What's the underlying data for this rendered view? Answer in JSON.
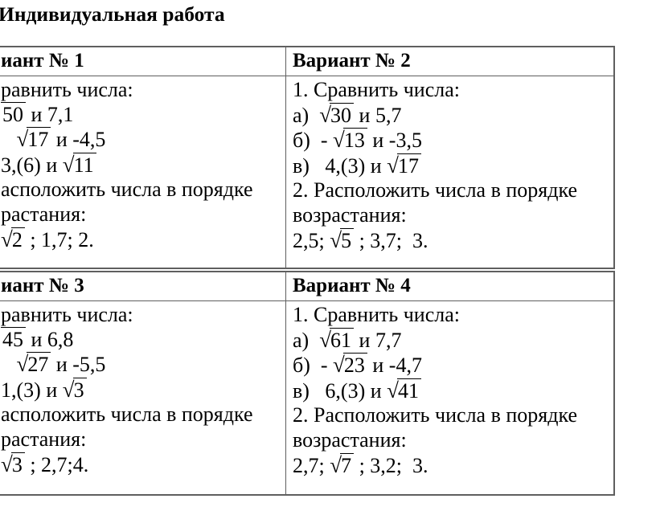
{
  "title": "Индивидуальная работа",
  "colors": {
    "text": "#000000",
    "table_border": "#5f5f5f",
    "background": "#ffffff"
  },
  "tables": [
    {
      "columns": [
        {
          "header": "иант № 1",
          "lines": [
            [
              {
                "t": "равнить числа:"
              }
            ],
            [
              {
                "b": "50"
              },
              {
                "t": " и 7,1"
              }
            ],
            [
              {
                "t": "   "
              },
              {
                "r": "17"
              },
              {
                "t": " и -4,5"
              }
            ],
            [
              {
                "t": "3,(6) и "
              },
              {
                "r": "11"
              }
            ],
            [
              {
                "t": "асположить числа в порядке"
              }
            ],
            [
              {
                "t": "растания:"
              }
            ],
            [
              {
                "r": "2"
              },
              {
                "t": " ; 1,7; 2."
              }
            ]
          ]
        },
        {
          "header": "Вариант № 2",
          "lines": [
            [
              {
                "t": "1. Сравнить числа:"
              }
            ],
            [
              {
                "t": "а)  "
              },
              {
                "r": "30"
              },
              {
                "t": " и 5,7"
              }
            ],
            [
              {
                "t": "б)  - "
              },
              {
                "r": "13"
              },
              {
                "t": " и -3,5"
              }
            ],
            [
              {
                "t": "в)   4,(3) и "
              },
              {
                "r": "17"
              }
            ],
            [
              {
                "t": "2. Расположить числа в порядке"
              }
            ],
            [
              {
                "t": "возрастания:"
              }
            ],
            [
              {
                "t": "2,5; "
              },
              {
                "r": "5"
              },
              {
                "t": " ; 3,7;  3."
              }
            ]
          ]
        }
      ]
    },
    {
      "columns": [
        {
          "header": "иант № 3",
          "lines": [
            [
              {
                "t": "равнить числа:"
              }
            ],
            [
              {
                "b": "45"
              },
              {
                "t": " и 6,8"
              }
            ],
            [
              {
                "t": "   "
              },
              {
                "r": "27"
              },
              {
                "t": " и -5,5"
              }
            ],
            [
              {
                "t": "1,(3) и "
              },
              {
                "r": "3"
              }
            ],
            [
              {
                "t": "асположить числа в порядке"
              }
            ],
            [
              {
                "t": "растания:"
              }
            ],
            [
              {
                "r": "3"
              },
              {
                "t": " ; 2,7;4."
              }
            ]
          ]
        },
        {
          "header": "Вариант № 4",
          "lines": [
            [
              {
                "t": "1. Сравнить числа:"
              }
            ],
            [
              {
                "t": "а)  "
              },
              {
                "r": "61"
              },
              {
                "t": " и 7,7"
              }
            ],
            [
              {
                "t": "б)  - "
              },
              {
                "r": "23"
              },
              {
                "t": " и -4,7"
              }
            ],
            [
              {
                "t": "в)   6,(3) и "
              },
              {
                "r": "41"
              }
            ],
            [
              {
                "t": "2. Расположить числа в порядке"
              }
            ],
            [
              {
                "t": "возрастания:"
              }
            ],
            [
              {
                "t": "2,7; "
              },
              {
                "r": "7"
              },
              {
                "t": " ; 3,2;  3."
              }
            ]
          ]
        }
      ]
    }
  ]
}
